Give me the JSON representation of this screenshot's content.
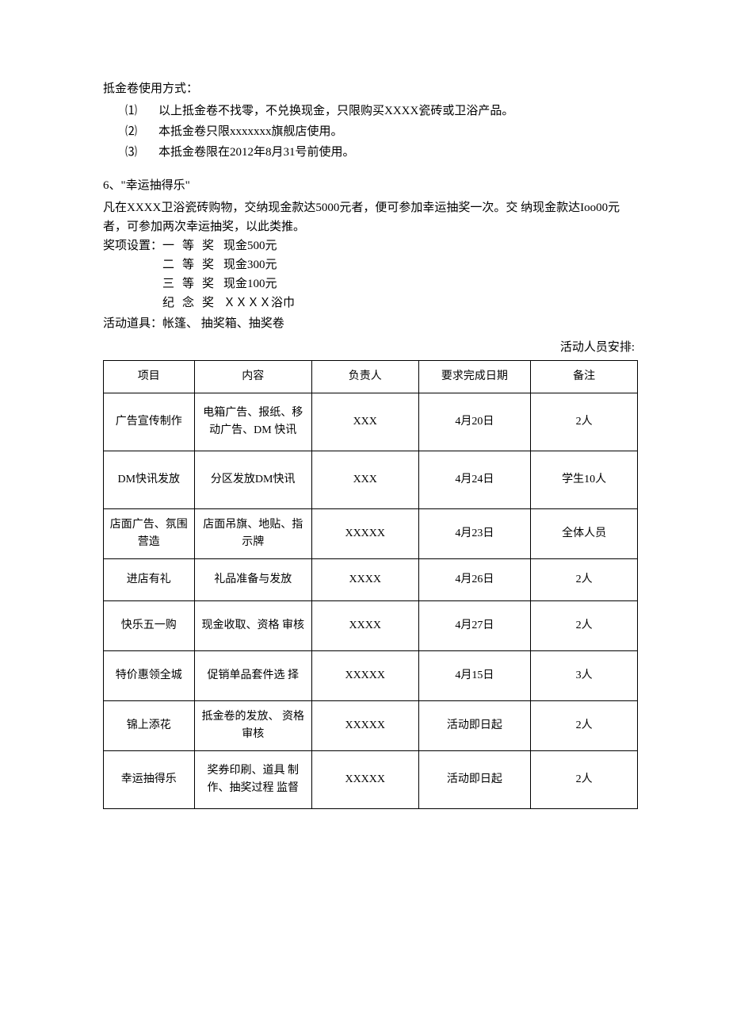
{
  "voucher": {
    "title": "抵金卷使用方式：",
    "items": [
      {
        "num": "⑴",
        "text": "以上抵金卷不找零，不兑换现金，只限购买XXXX瓷砖或卫浴产品。"
      },
      {
        "num": "⑵",
        "text": "本抵金卷只限xxxxxxx旗舰店使用。"
      },
      {
        "num": "⑶",
        "text": "本抵金卷限在2012年8月31号前使用。"
      }
    ]
  },
  "section6": {
    "heading": "6、\"幸运抽得乐\"",
    "desc1": "凡在XXXX卫浴瓷砖购物，交纳现金款达5000元者，便可参加幸运抽奖一次。交 纳现金款达Ioo00元者，可参加两次幸运抽奖，以此类推。",
    "prize_label": "奖项设置：",
    "prizes": [
      {
        "level": "一等奖",
        "value": "现金500元"
      },
      {
        "level": "二等奖",
        "value": "现金300元"
      },
      {
        "level": "三等奖",
        "value": "现金100元"
      },
      {
        "level": "纪念奖",
        "value": "ＸＸＸＸ浴巾"
      }
    ],
    "props": "活动道具：帐篷、 抽奖箱、抽奖卷"
  },
  "arrangement": {
    "label": "活动人员安排:",
    "headers": [
      "项目",
      "内容",
      "负责人",
      "要求完成日期",
      "备注"
    ],
    "rows": [
      {
        "cls": "tall",
        "c": [
          "广告宣传制作",
          "电箱广告、报纸、移动广告、DM 快讯",
          "XXX",
          "4月20日",
          "2人"
        ]
      },
      {
        "cls": "tall",
        "c": [
          "DM快讯发放",
          "分区发放DM快讯",
          "XXX",
          "4月24日",
          "学生10人"
        ]
      },
      {
        "cls": "med",
        "c": [
          "店面广告、氛围 营造",
          "店面吊旗、地贴、指示牌",
          "XXXXX",
          "4月23日",
          "全体人员"
        ]
      },
      {
        "cls": "short",
        "c": [
          "进店有礼",
          "礼品准备与发放",
          "XXXX",
          "4月26日",
          "2人"
        ]
      },
      {
        "cls": "med",
        "c": [
          "快乐五一购",
          "现金收取、资格 审核",
          "XXXX",
          "4月27日",
          "2人"
        ]
      },
      {
        "cls": "med",
        "c": [
          "特价惠领全城",
          "促销单品套件选 择",
          "XXXXX",
          "4月15日",
          "3人"
        ]
      },
      {
        "cls": "med",
        "c": [
          "锦上添花",
          "抵金卷的发放、 资格审核",
          "XXXXX",
          "活动即日起",
          "2人"
        ]
      },
      {
        "cls": "tall",
        "c": [
          "幸运抽得乐",
          "奖券印刷、道具 制作、抽奖过程 监督",
          "XXXXX",
          "活动即日起",
          "2人"
        ]
      }
    ]
  }
}
